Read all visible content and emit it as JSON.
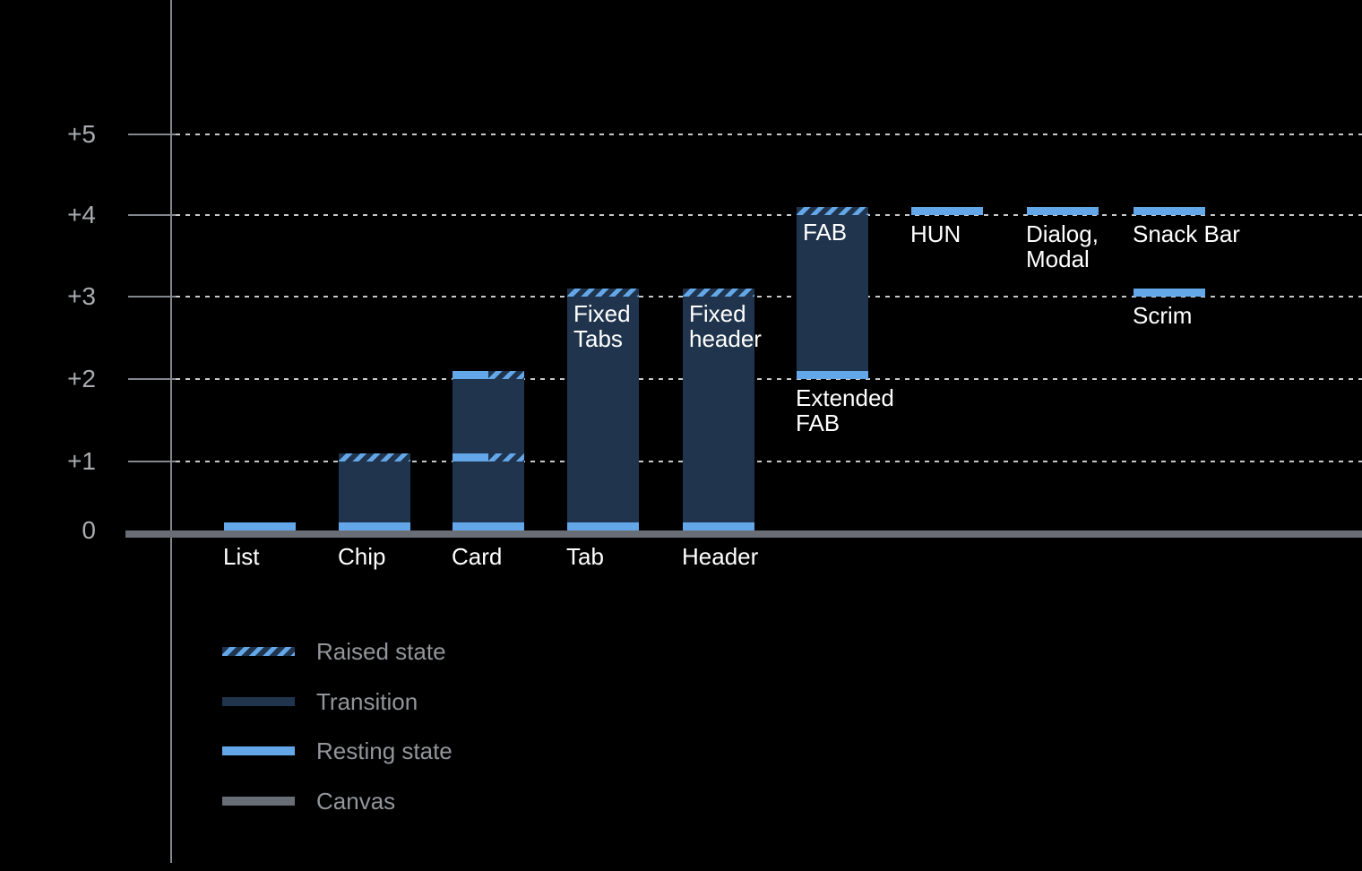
{
  "colors": {
    "background": "#000000",
    "resting": "#64A7E9",
    "transition": "#20354D",
    "canvas": "#696E76",
    "axis": "#83878E",
    "gridline": "#C6C9CC",
    "tick_label": "#A9ACB0",
    "bar_label": "#FFFFFF",
    "legend_label": "#929599"
  },
  "axis": {
    "ticks": [
      {
        "value": 5,
        "label": "+5"
      },
      {
        "value": 4,
        "label": "+4"
      },
      {
        "value": 3,
        "label": "+3"
      },
      {
        "value": 2,
        "label": "+2"
      },
      {
        "value": 1,
        "label": "+1"
      },
      {
        "value": 0,
        "label": "0"
      }
    ]
  },
  "chart_data": {
    "type": "bar",
    "ylim": [
      0,
      5.5
    ],
    "grid": "dotted-horizontal",
    "yticks": [
      "0",
      "+1",
      "+2",
      "+3",
      "+4",
      "+5"
    ],
    "categories": [
      "List",
      "Chip",
      "Card",
      "Tab",
      "Header",
      "Extended FAB / FAB",
      "HUN",
      "Dialog, Modal",
      "Snack Bar",
      "Scrim"
    ],
    "bars": [
      {
        "id": "list",
        "label_lines": [
          "List"
        ],
        "segments": [
          {
            "from": 0,
            "to": 0.1,
            "style": "resting"
          }
        ]
      },
      {
        "id": "chip",
        "label_lines": [
          "Chip"
        ],
        "segments": [
          {
            "from": 0,
            "to": 0.1,
            "style": "resting"
          },
          {
            "from": 0.1,
            "to": 1,
            "style": "transition"
          },
          {
            "from": 1,
            "to": 1.1,
            "style": "raised"
          }
        ]
      },
      {
        "id": "card",
        "label_lines": [
          "Card"
        ],
        "segments": [
          {
            "from": 0,
            "to": 0.1,
            "style": "resting"
          },
          {
            "from": 0.1,
            "to": 1,
            "style": "transition"
          },
          {
            "from": 1,
            "to": 1.1,
            "style": "split"
          },
          {
            "from": 1.1,
            "to": 2,
            "style": "transition"
          },
          {
            "from": 2,
            "to": 2.1,
            "style": "split"
          }
        ]
      },
      {
        "id": "tab",
        "label_lines": [
          "Tab"
        ],
        "inner_lines": [
          "Fixed",
          "Tabs"
        ],
        "segments": [
          {
            "from": 0,
            "to": 0.1,
            "style": "resting"
          },
          {
            "from": 0.1,
            "to": 3,
            "style": "transition"
          },
          {
            "from": 3,
            "to": 3.1,
            "style": "raised"
          }
        ]
      },
      {
        "id": "header",
        "label_lines": [
          "Header"
        ],
        "inner_lines": [
          "Fixed",
          "header"
        ],
        "segments": [
          {
            "from": 0,
            "to": 0.1,
            "style": "resting"
          },
          {
            "from": 0.1,
            "to": 3,
            "style": "transition"
          },
          {
            "from": 3,
            "to": 3.1,
            "style": "raised"
          }
        ]
      },
      {
        "id": "fab",
        "label_lines": [
          "Extended",
          "FAB"
        ],
        "inner_lines": [
          "FAB"
        ],
        "segments": [
          {
            "from": 2,
            "to": 2.1,
            "style": "resting"
          },
          {
            "from": 2.1,
            "to": 4,
            "style": "transition"
          },
          {
            "from": 4,
            "to": 4.1,
            "style": "raised"
          }
        ]
      },
      {
        "id": "hun",
        "label_lines": [
          "HUN"
        ],
        "segments": [
          {
            "from": 4,
            "to": 4.1,
            "style": "resting"
          }
        ]
      },
      {
        "id": "dialog",
        "label_lines": [
          "Dialog,",
          "Modal"
        ],
        "segments": [
          {
            "from": 4,
            "to": 4.1,
            "style": "resting"
          }
        ]
      },
      {
        "id": "snackbar",
        "label_lines": [
          "Snack Bar"
        ],
        "segments": [
          {
            "from": 4,
            "to": 4.1,
            "style": "resting"
          }
        ]
      },
      {
        "id": "scrim",
        "label_lines": [
          "Scrim"
        ],
        "segments": [
          {
            "from": 3,
            "to": 3.1,
            "style": "resting"
          }
        ]
      }
    ],
    "legend": {
      "position": "bottom-left",
      "items": [
        {
          "style": "raised",
          "label": "Raised state"
        },
        {
          "style": "transition",
          "label": "Transition"
        },
        {
          "style": "resting",
          "label": "Resting state"
        },
        {
          "style": "canvas",
          "label": "Canvas"
        }
      ]
    }
  }
}
